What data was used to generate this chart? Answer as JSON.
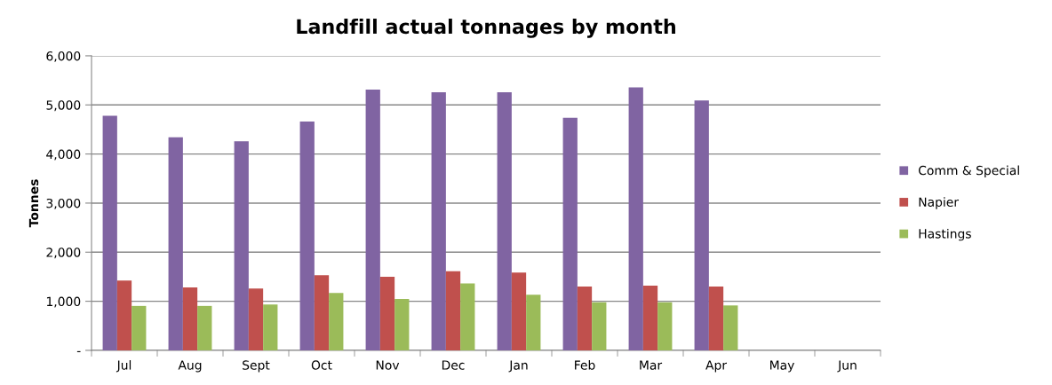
{
  "chart_data": {
    "type": "bar",
    "title": "Landfill actual tonnages by month",
    "ylabel": "Tonnes",
    "categories": [
      "Jul",
      "Aug",
      "Sept",
      "Oct",
      "Nov",
      "Dec",
      "Jan",
      "Feb",
      "Mar",
      "Apr",
      "May",
      "Jun"
    ],
    "series": [
      {
        "name": "Comm & Special",
        "color": "#8064a2",
        "values": [
          4780,
          4340,
          4260,
          4660,
          5310,
          5260,
          5260,
          4740,
          5355,
          5090,
          null,
          null
        ]
      },
      {
        "name": "Napier",
        "color": "#c0504d",
        "values": [
          1420,
          1280,
          1260,
          1530,
          1500,
          1610,
          1585,
          1300,
          1320,
          1300,
          null,
          null
        ]
      },
      {
        "name": "Hastings",
        "color": "#9bbb59",
        "values": [
          905,
          905,
          935,
          1170,
          1045,
          1365,
          1135,
          980,
          980,
          915,
          null,
          null
        ]
      }
    ],
    "ylim": [
      0,
      6000
    ],
    "yticks": [
      {
        "value": 0,
        "label": "-"
      },
      {
        "value": 1000,
        "label": "1,000"
      },
      {
        "value": 2000,
        "label": "2,000"
      },
      {
        "value": 3000,
        "label": "3,000"
      },
      {
        "value": 4000,
        "label": "4,000"
      },
      {
        "value": 5000,
        "label": "5,000"
      },
      {
        "value": 6000,
        "label": "6,000"
      }
    ],
    "grid": "y",
    "legend": "right"
  }
}
